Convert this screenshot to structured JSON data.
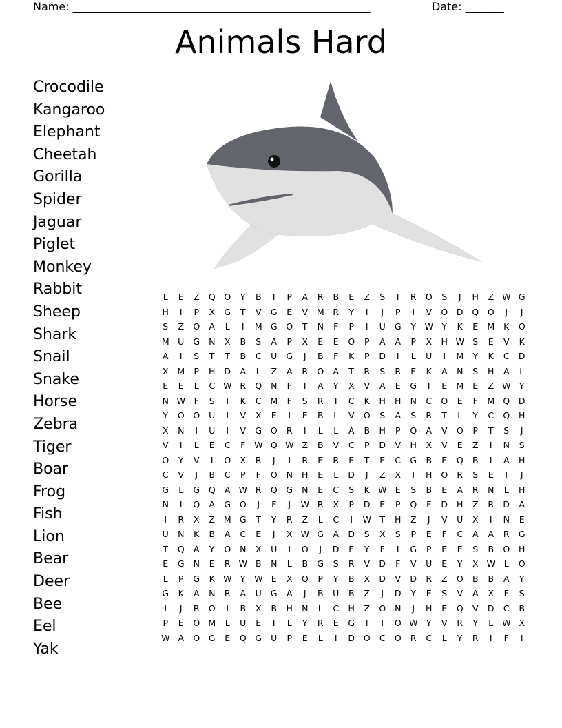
{
  "header": {
    "name_label": "Name: ______________________________________________________",
    "date_label": "Date: _______"
  },
  "title": "Animals Hard",
  "words": [
    "Crocodile",
    "Kangaroo",
    "Elephant",
    "Cheetah",
    "Gorilla",
    "Spider",
    "Jaguar",
    "Piglet",
    "Monkey",
    "Rabbit",
    "Sheep",
    "Shark",
    "Snail",
    "Snake",
    "Horse",
    "Zebra",
    "Tiger",
    "Boar",
    "Frog",
    "Fish",
    "Lion",
    "Bear",
    "Deer",
    "Bee",
    "Eel",
    "Yak"
  ],
  "illustration": {
    "icon": "shark-icon",
    "colors": {
      "body": "#62656b",
      "belly": "#e1e1e1",
      "eye": "#111111"
    }
  },
  "grid": [
    "LEZQOYBIPARBEZSIROSJHZWG",
    "HIPXGTVGEVMRYIJPIVODQOJJ",
    "SZOALIMGOTNFPIUGYWYKEMKO",
    "MUGNXBSAPXEEOPAAPXHWSEVK",
    "AISTTBCUGJBFKPDILUIMYKCD",
    "XMPHDALZAROATRSREKANSHAL",
    "EELCWRQNFTAYXVAEGTEMEZWY",
    "NWFSIKCMFSRTCKHHNCOEFMQD",
    "YOOUIVXEIEBLVOSASRTLYCQH",
    "XNIUIVGORILLABHPQAVOPTSJ",
    "VILECFWQWZBVCPDVHXVEZINS",
    "OYVIOXRJIRERETECGBEQBIAH",
    "CVJBCPFONHELDJZXTHORSEIJ",
    "GLGQAWRQGNECSKWESBEARNLH",
    "NIQAGOJFJWRXPDEPQFDHZRDA",
    "IRXZMGTYRZLCIWTHZJVUXINE",
    "UNKBACEJXWGADSXSPEFCAARG",
    "TQAYONXUIOJDEYFIGPEESBOH",
    "EGNERWBNLBGSRVDFVUEYXWLO",
    "LPGKWYWEXQPYBXDVDRZOBBAY",
    "GKANRAUGAJBUBZJDYESVAXFS",
    "IJROIBXBHNLCHZONJHEQVDCB",
    "PEOMLUETLYREGITOWYVRYLWX",
    "WAOGEQGUPELIDOCORCLYRIFI"
  ]
}
